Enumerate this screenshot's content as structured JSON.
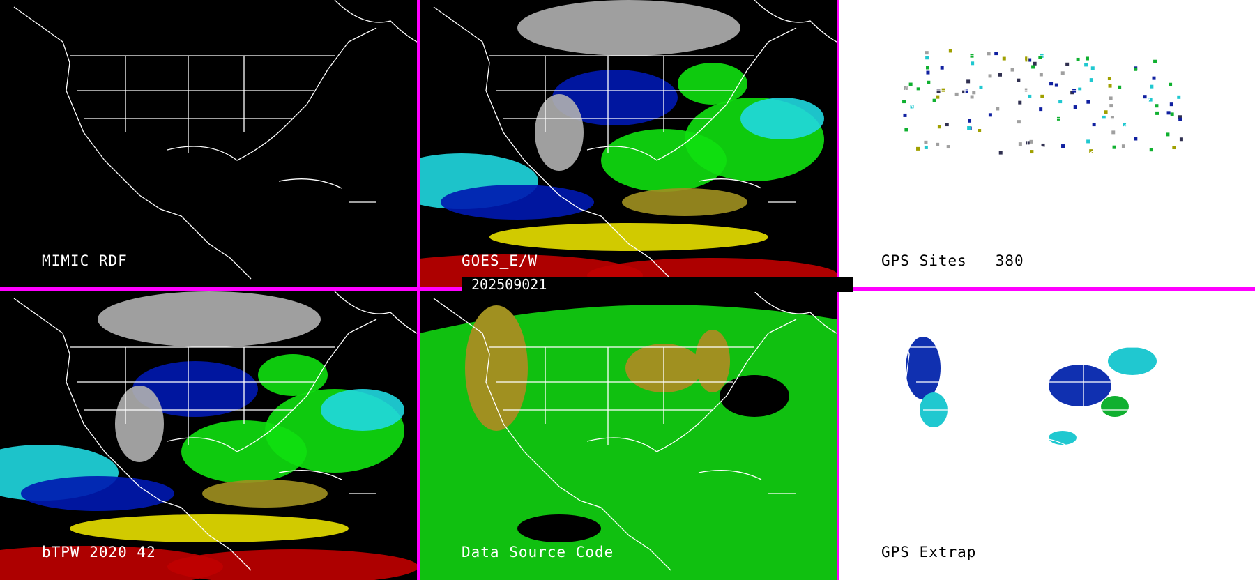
{
  "panels": [
    {
      "label": "MIMIC RDF",
      "theme": "dark"
    },
    {
      "label": "GOES_E/W",
      "theme": "dark"
    },
    {
      "label": "GPS Sites",
      "count": "380",
      "theme": "light"
    },
    {
      "label": "bTPW_2020_42",
      "theme": "dark"
    },
    {
      "label": "Data_Source_Code",
      "theme": "dark"
    },
    {
      "label": "GPS_Extrap",
      "theme": "light"
    }
  ],
  "date": "202509021",
  "colors": {
    "divider": "#ff00ff",
    "blue": "#0018b0",
    "cyan": "#20d8e0",
    "green": "#10e010",
    "olive": "#a09020",
    "yellow": "#e8e000",
    "red": "#c00000",
    "gray": "#b0b0b0"
  }
}
